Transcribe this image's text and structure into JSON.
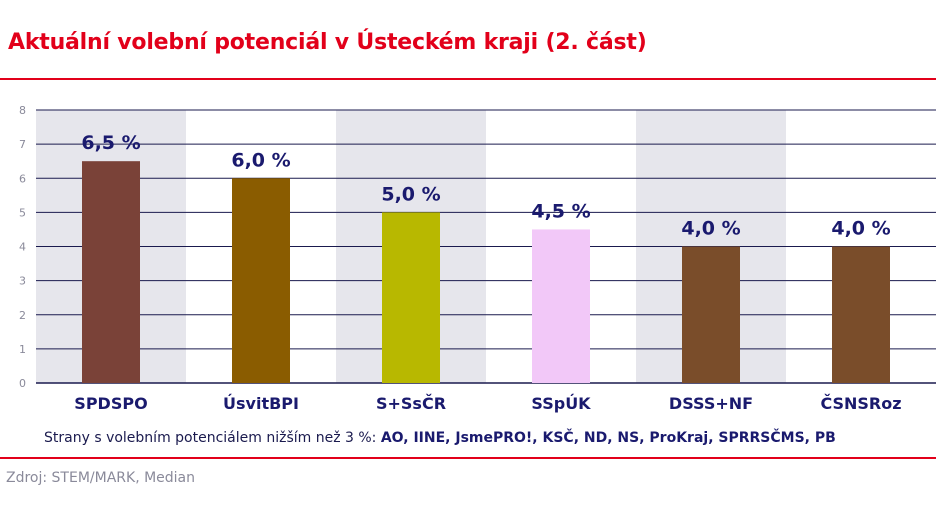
{
  "title": "Aktuální volební potenciál v Ústeckém kraji (2. část)",
  "colors": {
    "title": "#e2001a",
    "text": "#1a1a6e",
    "band": "#e6e6ec",
    "axis": "#1a1a4e",
    "grid": "#1a1a4e"
  },
  "chart_data": {
    "type": "bar",
    "title": "Aktuální volební potenciál v Ústeckém kraji (2. část)",
    "xlabel": "",
    "ylabel": "",
    "ylim": [
      0,
      8
    ],
    "yticks": [
      0,
      1,
      2,
      3,
      4,
      5,
      6,
      7,
      8
    ],
    "grid": true,
    "categories": [
      "SPDSPO",
      "ÚsvitBPI",
      "S+SsČR",
      "SSpÚK",
      "DSSS+NF",
      "ČSNSRoz"
    ],
    "values": [
      6.5,
      6.0,
      5.0,
      4.5,
      4.0,
      4.0
    ],
    "labels": [
      "6,5 %",
      "6,0 %",
      "5,0 %",
      "4,5 %",
      "4,0 %",
      "4,0 %"
    ],
    "bar_colors": [
      "#7a4238",
      "#8a5c00",
      "#b8b800",
      "#f2c8f8",
      "#7a4d2a",
      "#7a4d2a"
    ],
    "band_columns": [
      0,
      2,
      4
    ]
  },
  "note": {
    "prefix": "Strany s volebním potenciálem nižším než 3 %: ",
    "parties": "AO, IINE, JsmePRO!, KSČ, ND, NS, ProKraj, SPRRSČMS, PB"
  },
  "source": "Zdroj: STEM/MARK, Median"
}
